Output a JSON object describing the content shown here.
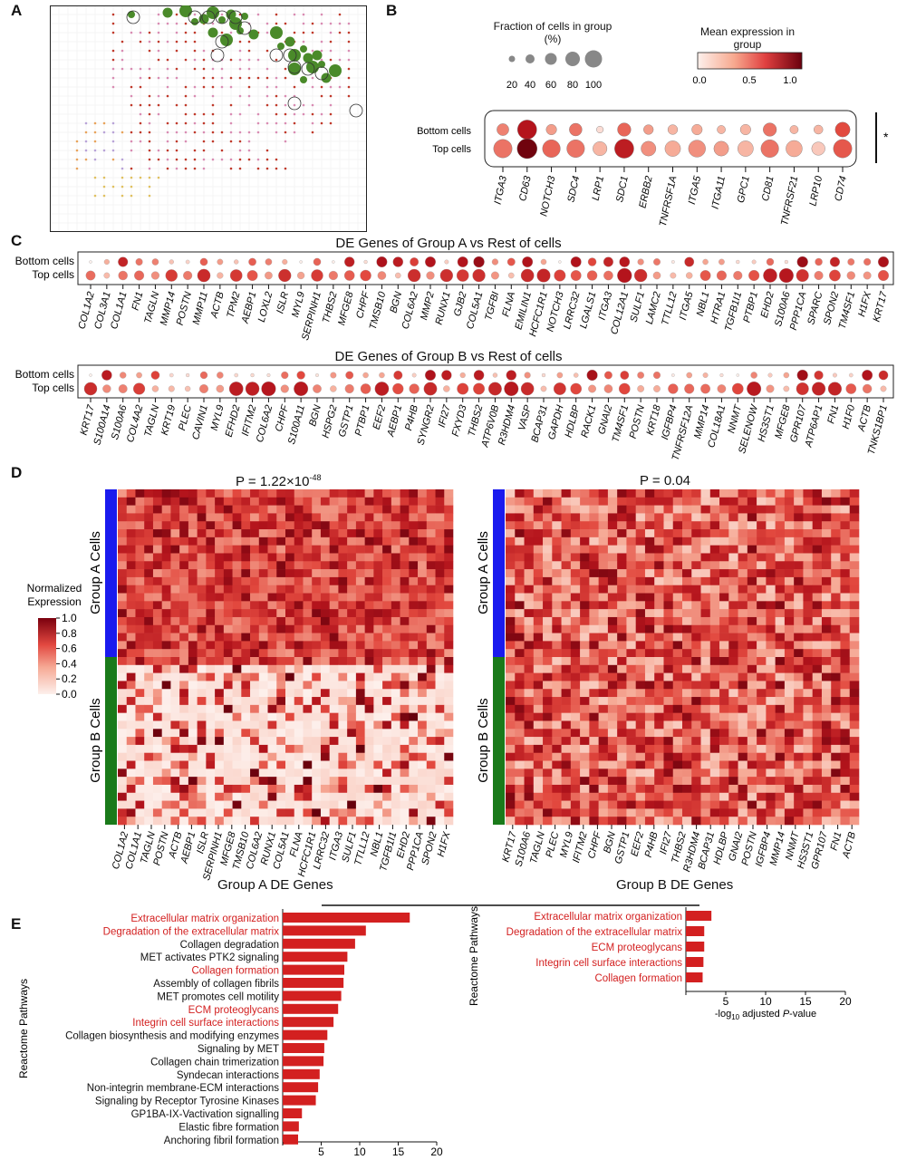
{
  "panels": [
    "A",
    "B",
    "C",
    "D",
    "E"
  ],
  "panel_b": {
    "size_legend_title": "Fraction of cells in group (%)",
    "size_legend_values": [
      "20",
      "40",
      "60",
      "80",
      "100"
    ],
    "color_legend_title": "Mean expression in group",
    "color_legend_ticks": [
      "0.0",
      "0.5",
      "1.0"
    ],
    "rows": [
      "Bottom cells",
      "Top cells"
    ],
    "significance": "*",
    "genes": [
      "ITGA3",
      "CD63",
      "NOTCH3",
      "SDC4",
      "LRP1",
      "SDC1",
      "ERBB2",
      "TNFRSF1A",
      "ITGA5",
      "ITGA11",
      "GPC1",
      "CD81",
      "TNFRSF21",
      "LRP10",
      "CD74"
    ],
    "bottom_size": [
      0.45,
      0.95,
      0.35,
      0.5,
      0.1,
      0.55,
      0.3,
      0.3,
      0.35,
      0.2,
      0.35,
      0.55,
      0.2,
      0.25,
      0.65
    ],
    "bottom_expr": [
      0.5,
      1.0,
      0.4,
      0.55,
      0.1,
      0.6,
      0.4,
      0.3,
      0.35,
      0.3,
      0.3,
      0.55,
      0.3,
      0.3,
      0.7
    ],
    "top_size": [
      0.9,
      1.0,
      0.85,
      0.85,
      0.6,
      0.95,
      0.65,
      0.7,
      0.8,
      0.65,
      0.7,
      0.85,
      0.75,
      0.55,
      0.9
    ],
    "top_expr": [
      0.55,
      1.15,
      0.6,
      0.55,
      0.3,
      0.95,
      0.45,
      0.35,
      0.45,
      0.4,
      0.3,
      0.55,
      0.35,
      0.2,
      0.65
    ]
  },
  "panel_c": {
    "title_a": "DE Genes of Group A vs Rest of cells",
    "title_b": "DE Genes of Group B vs Rest of cells",
    "rows": [
      "Bottom cells",
      "Top cells"
    ],
    "genes_a": [
      "COL1A2",
      "COL3A1",
      "COL1A1",
      "FN1",
      "TAGLN",
      "MMP14",
      "POSTN",
      "MMP11",
      "ACTB",
      "TPM2",
      "AEBP1",
      "LOXL2",
      "ISLR",
      "MYL9",
      "SERPINH1",
      "THBS2",
      "MFGE8",
      "CHPF",
      "TMSB10",
      "BGN",
      "COL6A2",
      "MMP2",
      "RUNX1",
      "GJB2",
      "COL5A1",
      "TGFBI",
      "FLNA",
      "EMILIN1",
      "HCFC1R1",
      "NOTCH3",
      "LRRC32",
      "LGALS1",
      "ITGA3",
      "COL12A1",
      "SULF1",
      "LAMC2",
      "TTLL12",
      "ITGA5",
      "NBL1",
      "HTRA1",
      "TGFB1I1",
      "PTBP1",
      "EHD2",
      "S100A6",
      "PPP1CA",
      "SPARC",
      "SPON2",
      "TM4SF1",
      "H1FX",
      "KRT17"
    ],
    "genes_b": [
      "KRT17",
      "S100A14",
      "S100A6",
      "COL4A2",
      "TAGLN",
      "KRT19",
      "PLEC",
      "CAVIN1",
      "MYL9",
      "EFHD2",
      "IFITM2",
      "COL6A2",
      "CHPF",
      "S100A11",
      "BGN",
      "HSPG2",
      "GSTP1",
      "PTBP1",
      "EEF2",
      "AEBP1",
      "P4HB",
      "SYNGR2",
      "IFI27",
      "FXYD3",
      "THBS2",
      "ATP6V0B",
      "R3HDM4",
      "VASP",
      "BCAP31",
      "GAPDH",
      "HDLBP",
      "RACK1",
      "GNAI2",
      "TM4SF1",
      "POSTN",
      "KRT18",
      "IGFBP4",
      "TNFRSF12A",
      "MMP14",
      "COL18A1",
      "NNMT",
      "SELENOW",
      "HS3ST1",
      "MFGE8",
      "GPR107",
      "ATP6AP1",
      "FN1",
      "H1F0",
      "ACTB",
      "TNKS1BP1"
    ]
  },
  "panel_d": {
    "left_p_prefix": "P = 1.22×10",
    "left_p_exp": "-48",
    "right_p": "P = 0.04",
    "group_a_label": "Group A Cells",
    "group_b_label": "Group B Cells",
    "colorbar_title_1": "Normalized",
    "colorbar_title_2": "Expression",
    "colorbar_ticks": [
      "1.0",
      "0.8",
      "0.6",
      "0.4",
      "0.2",
      "0.0"
    ],
    "left_xlabel": "Group A DE Genes",
    "right_xlabel": "Group B DE Genes",
    "left_genes": [
      "COL1A2",
      "COL1A1",
      "TAGLN",
      "POSTN",
      "ACTB",
      "AEBP1",
      "ISLR",
      "SERPINH1",
      "MFGE8",
      "TMSB10",
      "COL6A2",
      "RUNX1",
      "COL5A1",
      "FLNA",
      "HCFC1R1",
      "LRRC32",
      "ITGA3",
      "SULF1",
      "TTLL12",
      "NBL1",
      "TGFB1I1",
      "EHD2",
      "PPP1CA",
      "SPON2",
      "H1FX"
    ],
    "right_genes": [
      "KRT17",
      "S100A6",
      "TAGLN",
      "PLEC",
      "MYL9",
      "IFITM2",
      "CHPF",
      "BGN",
      "GSTP1",
      "EEF2",
      "P4HB",
      "IFI27",
      "THBS2",
      "R3HDM4",
      "BCAP31",
      "HDLBP",
      "GNAI2",
      "POSTN",
      "IGFBP4",
      "MMP14",
      "NNMT",
      "HS3ST1",
      "GPR107",
      "FN1",
      "ACTB"
    ]
  },
  "panel_e": {
    "ylabel": "Reactome Pathways",
    "xlabel_prefix": "-log",
    "xlabel_sub": "10",
    "xlabel_suffix": " adjusted ",
    "xlabel_p": "P",
    "xlabel_end": "-value",
    "significance": "*",
    "xticks": [
      "5",
      "10",
      "15",
      "20"
    ],
    "chart_data": [
      {
        "type": "bar",
        "categories": [
          "Extracellular matrix organization",
          "Degradation of the extracellular matrix",
          "Collagen degradation",
          "MET activates PTK2 signaling",
          "Collagen formation",
          "Assembly of collagen fibrils",
          "MET promotes cell motility",
          "ECM proteoglycans",
          "Integrin cell surface interactions",
          "Collagen biosynthesis and modifying enzymes",
          "Signaling by MET",
          "Collagen chain trimerization",
          "Syndecan interactions",
          "Non-integrin membrane-ECM interactions",
          "Signaling by Receptor Tyrosine Kinases",
          "GP1BA-IX-Vactivation signalling",
          "Elastic fibre formation",
          "Anchoring fibril formation"
        ],
        "values": [
          16.5,
          10.8,
          9.4,
          8.4,
          8.0,
          7.9,
          7.6,
          7.2,
          6.6,
          5.8,
          5.4,
          5.3,
          4.8,
          4.6,
          4.3,
          2.5,
          2.1,
          2.0
        ],
        "highlighted": [
          true,
          true,
          false,
          false,
          true,
          false,
          false,
          true,
          true,
          false,
          false,
          false,
          false,
          false,
          false,
          false,
          false,
          false
        ],
        "xlim": [
          0,
          20
        ]
      },
      {
        "type": "bar",
        "categories": [
          "Extracellular matrix organization",
          "Degradation of the extracellular matrix",
          "ECM proteoglycans",
          "Integrin cell surface interactions",
          "Collagen formation"
        ],
        "values": [
          3.2,
          2.3,
          2.3,
          2.2,
          2.1
        ],
        "highlighted": [
          true,
          true,
          true,
          true,
          true
        ],
        "xlim": [
          0,
          20
        ]
      }
    ]
  }
}
